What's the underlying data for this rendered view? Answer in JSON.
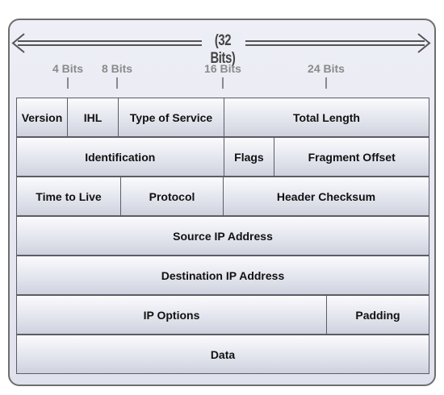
{
  "diagram": {
    "width_label": "(32 Bits)",
    "bit_ticks": [
      {
        "label": "4 Bits"
      },
      {
        "label": "8 Bits"
      },
      {
        "label": "16 Bits"
      },
      {
        "label": "24 Bits"
      }
    ],
    "rows": [
      [
        {
          "label": "Version"
        },
        {
          "label": "IHL"
        },
        {
          "label": "Type of Service"
        },
        {
          "label": "Total Length"
        }
      ],
      [
        {
          "label": "Identification"
        },
        {
          "label": "Flags"
        },
        {
          "label": "Fragment Offset"
        }
      ],
      [
        {
          "label": "Time to Live"
        },
        {
          "label": "Protocol"
        },
        {
          "label": "Header Checksum"
        }
      ],
      [
        {
          "label": "Source IP Address"
        }
      ],
      [
        {
          "label": "Destination IP Address"
        }
      ],
      [
        {
          "label": "IP Options"
        },
        {
          "label": "Padding"
        }
      ],
      [
        {
          "label": "Data"
        }
      ]
    ]
  }
}
